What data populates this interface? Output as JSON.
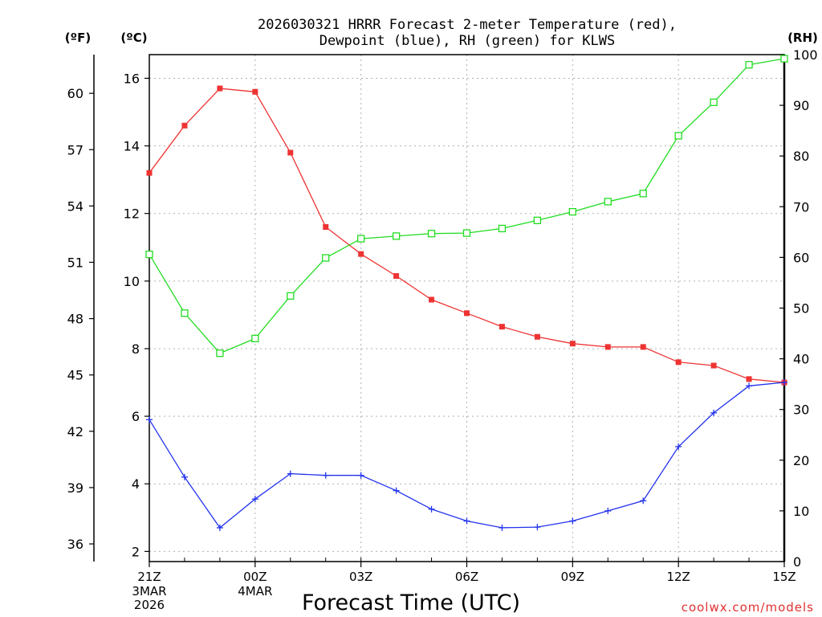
{
  "chart_data": {
    "type": "line",
    "title": "2026030321 HRRR Forecast 2-meter Temperature (red),",
    "title_line2": "Dewpoint (blue), RH (green) for KLWS",
    "xlabel": "Forecast Time (UTC)",
    "left_outer_unit": "(ºF)",
    "left_inner_unit": "(ºC)",
    "right_unit": "(RH)",
    "credit": "coolwx.com/models",
    "x_hours": [
      0,
      1,
      2,
      3,
      4,
      5,
      6,
      7,
      8,
      9,
      10,
      11,
      12,
      13,
      14,
      15,
      16,
      17,
      18
    ],
    "x_ticks": [
      {
        "hour": 0,
        "label": "21Z"
      },
      {
        "hour": 3,
        "label": "00Z"
      },
      {
        "hour": 6,
        "label": "03Z"
      },
      {
        "hour": 9,
        "label": "06Z"
      },
      {
        "hour": 12,
        "label": "09Z"
      },
      {
        "hour": 15,
        "label": "12Z"
      },
      {
        "hour": 18,
        "label": "15Z"
      }
    ],
    "date_labels": [
      {
        "hour": 0,
        "line1": "3MAR",
        "line2": "2026"
      },
      {
        "hour": 3,
        "line1": "4MAR",
        "line2": ""
      }
    ],
    "celsius_range": [
      1.7,
      16.7
    ],
    "celsius_ticks": [
      2,
      4,
      6,
      8,
      10,
      12,
      14,
      16
    ],
    "fahrenheit_ticks": [
      36,
      39,
      42,
      45,
      48,
      51,
      54,
      57,
      60
    ],
    "rh_range": [
      0,
      100
    ],
    "rh_ticks": [
      0,
      10,
      20,
      30,
      40,
      50,
      60,
      70,
      80,
      90,
      100
    ],
    "grid": true,
    "series": [
      {
        "name": "2-meter Temperature",
        "unit": "C",
        "axis": "celsius",
        "color": "#ee3333",
        "marker": "filled-square",
        "values": [
          13.2,
          14.6,
          15.7,
          15.6,
          13.8,
          11.6,
          10.8,
          10.15,
          9.45,
          9.05,
          8.65,
          8.35,
          8.15,
          8.05,
          8.05,
          7.6,
          7.5,
          7.1,
          7.0
        ]
      },
      {
        "name": "Dewpoint",
        "unit": "C",
        "axis": "celsius",
        "color": "#2233ee",
        "marker": "plus",
        "values": [
          5.9,
          4.2,
          2.7,
          3.55,
          4.3,
          4.25,
          4.25,
          3.8,
          3.25,
          2.9,
          2.7,
          2.72,
          2.9,
          3.2,
          3.5,
          5.1,
          6.1,
          6.9,
          7.0
        ]
      },
      {
        "name": "RH",
        "unit": "%",
        "axis": "rh",
        "color": "#22dd22",
        "marker": "open-square",
        "values": [
          60.6,
          49.0,
          41.1,
          44.0,
          52.4,
          59.9,
          63.7,
          64.2,
          64.7,
          64.8,
          65.7,
          67.3,
          69.0,
          71.0,
          72.6,
          84.0,
          90.6,
          98.0,
          99.2
        ]
      }
    ]
  }
}
